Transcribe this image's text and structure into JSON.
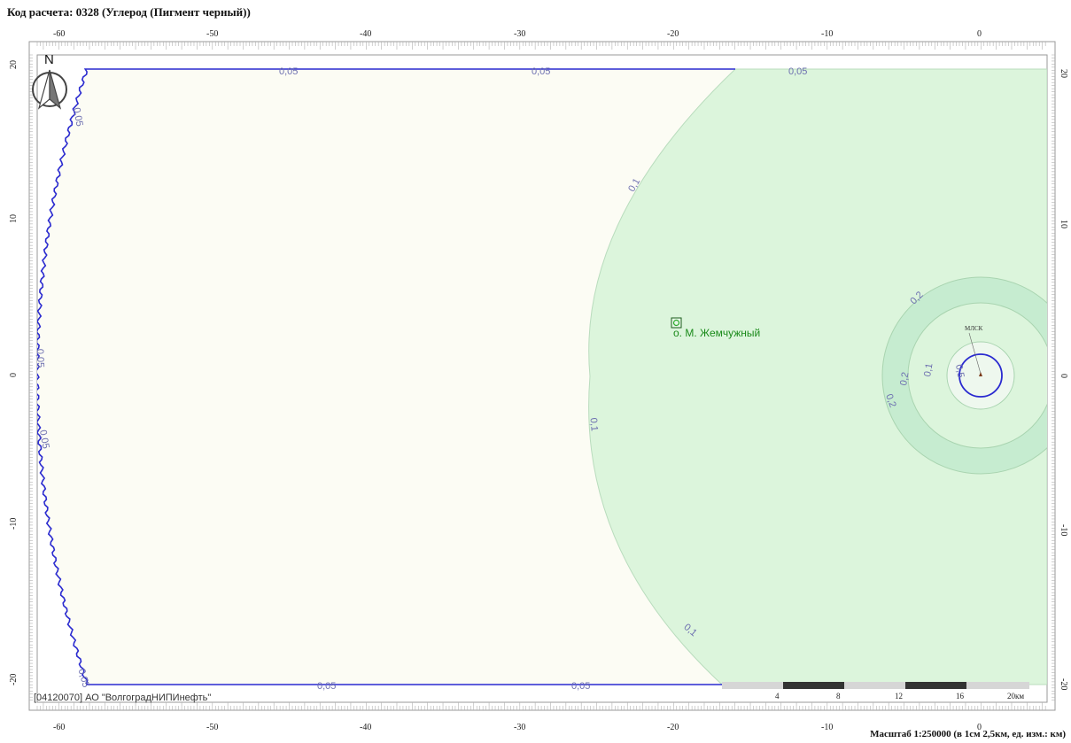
{
  "title": "Код расчета: 0328 (Углерод (Пигмент черный))",
  "scale_caption": "Масштаб 1:250000 (в 1см 2,5км, ед. изм.: км)",
  "organization": "[04120070] АО \"ВолгоградНИПИнефть\"",
  "north_label": "N",
  "axes": {
    "x_ticks": [
      "-60",
      "-50",
      "-40",
      "-30",
      "-20",
      "-10",
      "0"
    ],
    "y_ticks": [
      "20",
      "10",
      "0",
      "-10",
      "-20"
    ]
  },
  "colors": {
    "frame": "#9a9a9a",
    "blue_contour": "#2a2ad0",
    "fill_low": "#fcfcf4",
    "fill_mid": "#dcf5dc",
    "fill_high": "#c6ecd0",
    "contour_label": "#6d6fb0",
    "place": "#1a8a1a"
  },
  "contour_labels": {
    "v005": "0,05",
    "v01": "0,1",
    "v02": "0,2",
    "v05": "0,5"
  },
  "place_label": "о. М. Жемчужный",
  "source_label": "МЛСК",
  "scalebar": {
    "labels": [
      "4",
      "8",
      "12",
      "16",
      "20км"
    ]
  }
}
